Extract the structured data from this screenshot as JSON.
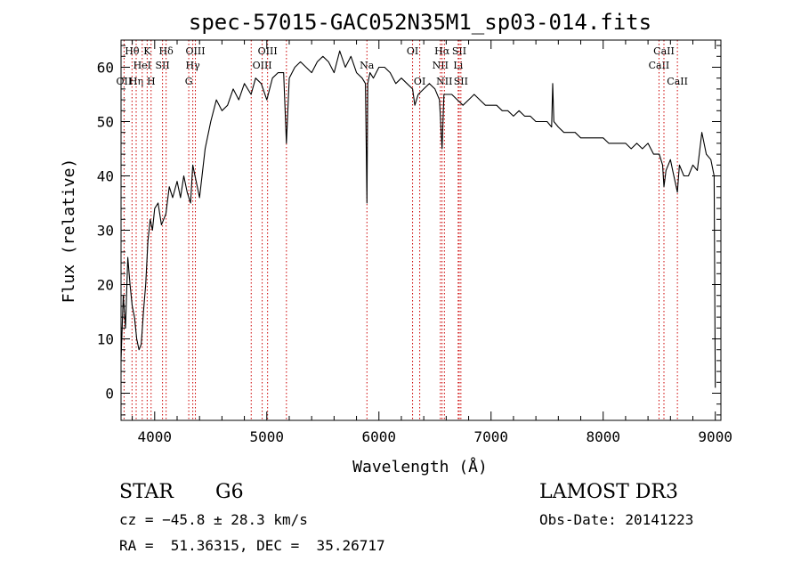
{
  "chart_data": {
    "type": "line",
    "title": "spec-57015-GAC052N35M1_sp03-014.fits",
    "xlabel": "Wavelength (Å)",
    "ylabel": "Flux (relative)",
    "xlim": [
      3700,
      9050
    ],
    "ylim": [
      -5,
      65
    ],
    "xticks": [
      4000,
      5000,
      6000,
      7000,
      8000,
      9000
    ],
    "yticks": [
      0,
      10,
      20,
      30,
      40,
      50,
      60
    ],
    "grid": false,
    "line_color": "#000000",
    "marker_color": "#cc0000",
    "series": [
      {
        "name": "flux",
        "x": [
          3700,
          3720,
          3740,
          3760,
          3780,
          3800,
          3820,
          3840,
          3860,
          3880,
          3900,
          3920,
          3940,
          3960,
          3980,
          4000,
          4030,
          4060,
          4100,
          4130,
          4160,
          4200,
          4230,
          4260,
          4290,
          4320,
          4340,
          4360,
          4380,
          4400,
          4450,
          4500,
          4550,
          4600,
          4650,
          4700,
          4750,
          4800,
          4860,
          4900,
          4950,
          5000,
          5050,
          5100,
          5150,
          5175,
          5200,
          5250,
          5300,
          5350,
          5400,
          5450,
          5500,
          5550,
          5600,
          5650,
          5700,
          5750,
          5800,
          5850,
          5880,
          5893,
          5900,
          5920,
          5950,
          6000,
          6050,
          6100,
          6150,
          6200,
          6250,
          6300,
          6320,
          6350,
          6400,
          6450,
          6500,
          6540,
          6563,
          6580,
          6600,
          6650,
          6700,
          6750,
          6800,
          6850,
          6900,
          6950,
          7000,
          7050,
          7100,
          7150,
          7200,
          7250,
          7300,
          7350,
          7400,
          7450,
          7500,
          7540,
          7550,
          7560,
          7600,
          7650,
          7700,
          7750,
          7800,
          7850,
          7900,
          7950,
          8000,
          8050,
          8100,
          8150,
          8200,
          8250,
          8300,
          8350,
          8400,
          8450,
          8500,
          8530,
          8542,
          8560,
          8600,
          8620,
          8662,
          8680,
          8720,
          8760,
          8800,
          8840,
          8880,
          8920,
          8960,
          8990,
          9000
        ],
        "y": [
          6,
          18,
          12,
          25,
          20,
          16,
          14,
          10,
          8,
          9,
          15,
          20,
          28,
          32,
          30,
          34,
          35,
          31,
          33,
          38,
          36,
          39,
          36,
          40,
          37,
          35,
          42,
          40,
          38,
          36,
          45,
          50,
          54,
          52,
          53,
          56,
          54,
          57,
          55,
          58,
          57,
          54,
          58,
          59,
          59,
          46,
          58,
          60,
          61,
          60,
          59,
          61,
          62,
          61,
          59,
          63,
          60,
          62,
          59,
          58,
          57,
          35,
          57,
          59,
          58,
          60,
          60,
          59,
          57,
          58,
          57,
          56,
          53,
          55,
          56,
          57,
          56,
          54,
          45,
          55,
          55,
          55,
          54,
          53,
          54,
          55,
          54,
          53,
          53,
          53,
          52,
          52,
          51,
          52,
          51,
          51,
          50,
          50,
          50,
          49,
          57,
          50,
          49,
          48,
          48,
          48,
          47,
          47,
          47,
          47,
          47,
          46,
          46,
          46,
          46,
          45,
          46,
          45,
          46,
          44,
          44,
          42,
          38,
          41,
          43,
          41,
          37,
          42,
          40,
          40,
          42,
          41,
          48,
          44,
          43,
          40,
          1
        ]
      }
    ],
    "line_markers": [
      {
        "wavelength": 3727,
        "label": "OII",
        "row": 3
      },
      {
        "wavelength": 3798,
        "label": "Hθ",
        "row": 1
      },
      {
        "wavelength": 3835,
        "label": "Hη",
        "row": 3
      },
      {
        "wavelength": 3889,
        "label": "HeI",
        "row": 2
      },
      {
        "wavelength": 3933,
        "label": "K",
        "row": 1
      },
      {
        "wavelength": 3968,
        "label": "H",
        "row": 3
      },
      {
        "wavelength": 4070,
        "label": "SII",
        "row": 2
      },
      {
        "wavelength": 4102,
        "label": "Hδ",
        "row": 1
      },
      {
        "wavelength": 4304,
        "label": "G",
        "row": 3
      },
      {
        "wavelength": 4340,
        "label": "Hγ",
        "row": 2
      },
      {
        "wavelength": 4363,
        "label": "OIII",
        "row": 1
      },
      {
        "wavelength": 4861,
        "label": "",
        "row": 0
      },
      {
        "wavelength": 4959,
        "label": "OIII",
        "row": 2
      },
      {
        "wavelength": 5007,
        "label": "OIII",
        "row": 1
      },
      {
        "wavelength": 5175,
        "label": "",
        "row": 0
      },
      {
        "wavelength": 5893,
        "label": "Na",
        "row": 2
      },
      {
        "wavelength": 6300,
        "label": "OI",
        "row": 1
      },
      {
        "wavelength": 6364,
        "label": "OI",
        "row": 3
      },
      {
        "wavelength": 6548,
        "label": "NII",
        "row": 2
      },
      {
        "wavelength": 6563,
        "label": "Hα",
        "row": 1
      },
      {
        "wavelength": 6584,
        "label": "NII",
        "row": 3
      },
      {
        "wavelength": 6707,
        "label": "Li",
        "row": 2
      },
      {
        "wavelength": 6716,
        "label": "SII",
        "row": 1
      },
      {
        "wavelength": 6731,
        "label": "SII",
        "row": 3
      },
      {
        "wavelength": 8498,
        "label": "CaII",
        "row": 2
      },
      {
        "wavelength": 8542,
        "label": "CaII",
        "row": 1
      },
      {
        "wavelength": 8662,
        "label": "CaII",
        "row": 3
      }
    ]
  },
  "info": {
    "object_class": "STAR",
    "subclass": "G6",
    "survey": "LAMOST DR3",
    "redshift": "cz = −45.8 ± 28.3 km/s",
    "obs_date": "Obs-Date: 20141223",
    "coords": "RA =  51.36315, DEC =  35.26717"
  }
}
